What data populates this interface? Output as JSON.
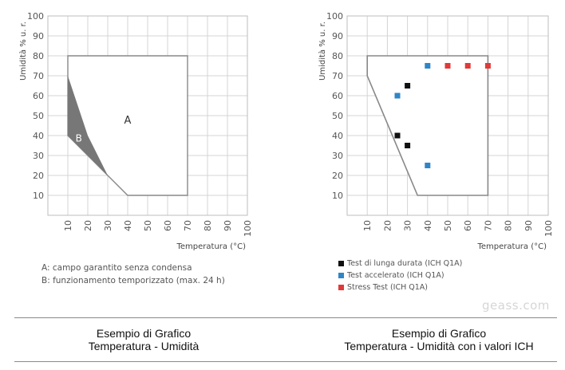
{
  "chart_data": [
    {
      "type": "area",
      "ylabel": "Umidità % u. r.",
      "xlabel": "Temperatura (°C)",
      "xlim": [
        0,
        100
      ],
      "ylim": [
        0,
        100
      ],
      "x_ticks": [
        "10",
        "20",
        "30",
        "40",
        "50",
        "60",
        "70",
        "80",
        "90",
        "100"
      ],
      "y_ticks": [
        "10",
        "20",
        "30",
        "40",
        "50",
        "60",
        "70",
        "80",
        "90",
        "100"
      ],
      "grid": true,
      "regions": [
        {
          "label": "A",
          "polygon": [
            [
              10,
              70
            ],
            [
              10,
              80
            ],
            [
              70,
              80
            ],
            [
              70,
              10
            ],
            [
              40,
              10
            ],
            [
              30,
              20
            ],
            [
              10,
              40
            ]
          ],
          "color": "#ffffff"
        },
        {
          "label": "B",
          "polygon": [
            [
              10,
              70
            ],
            [
              20,
              40
            ],
            [
              30,
              20
            ],
            [
              10,
              40
            ]
          ],
          "color": "#777777"
        }
      ],
      "legend": [
        "A: campo garantito senza condensa",
        "B: funzionamento temporizzato (max. 24 h)"
      ]
    },
    {
      "type": "scatter",
      "ylabel": "Umidità % u. r.",
      "xlabel": "Temperatura (°C)",
      "xlim": [
        0,
        100
      ],
      "ylim": [
        0,
        100
      ],
      "x_ticks": [
        "10",
        "20",
        "30",
        "40",
        "50",
        "60",
        "70",
        "80",
        "90",
        "100"
      ],
      "y_ticks": [
        "10",
        "20",
        "30",
        "40",
        "50",
        "60",
        "70",
        "80",
        "90",
        "100"
      ],
      "grid": true,
      "envelope": [
        [
          10,
          70
        ],
        [
          10,
          80
        ],
        [
          70,
          80
        ],
        [
          70,
          10
        ],
        [
          35,
          10
        ]
      ],
      "series": [
        {
          "name": "Test di lunga durata (ICH Q1A)",
          "color": "#111111",
          "points": [
            [
              25,
              40
            ],
            [
              30,
              65
            ],
            [
              30,
              35
            ]
          ]
        },
        {
          "name": "Test accelerato (ICH Q1A)",
          "color": "#2f86c6",
          "points": [
            [
              25,
              60
            ],
            [
              40,
              75
            ],
            [
              40,
              25
            ]
          ]
        },
        {
          "name": "Stress Test (ICH Q1A)",
          "color": "#e03a3a",
          "points": [
            [
              50,
              75
            ],
            [
              60,
              75
            ],
            [
              70,
              75
            ]
          ]
        }
      ],
      "legend_placement": "bottom-left"
    }
  ],
  "watermark": "geass.com",
  "captions": {
    "left_line1": "Esempio di Grafico",
    "left_line2": "Temperatura - Umidità",
    "right_line1": "Esempio di Grafico",
    "right_line2": "Temperatura - Umidità con i valori ICH"
  }
}
